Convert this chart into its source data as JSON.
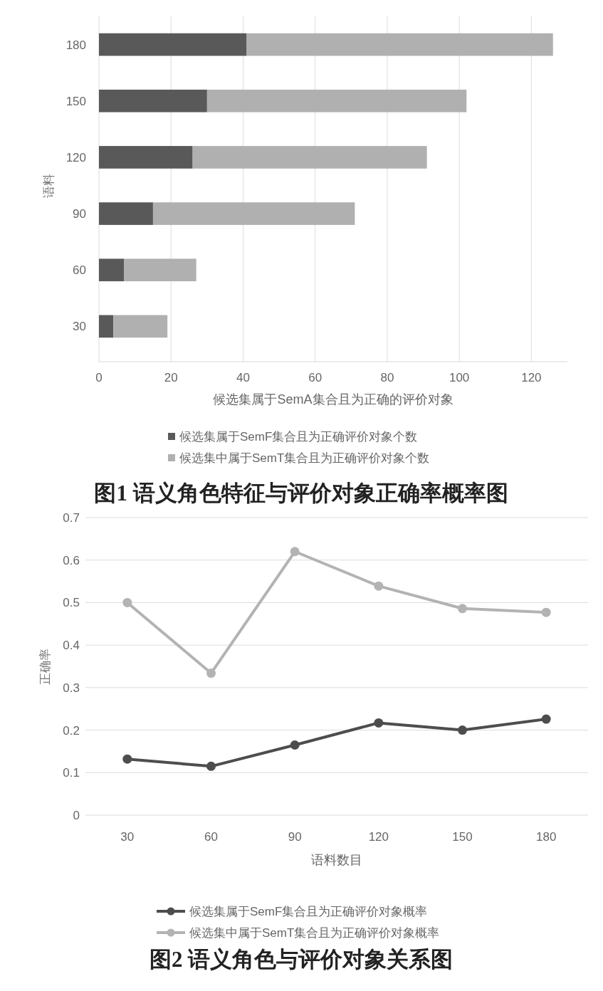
{
  "chart_data": [
    {
      "type": "bar",
      "orientation": "horizontal",
      "stacked": true,
      "title": "图1   语义角色特征与评价对象正确率概率图",
      "xlabel": "候选集属于SemA集合且为正确的评价对象",
      "ylabel": "语料",
      "categories": [
        "180",
        "150",
        "120",
        "90",
        "60",
        "30"
      ],
      "series": [
        {
          "name": "候选集属于SemF集合且为正确评价对象个数",
          "color": "#595959",
          "values": [
            41,
            30,
            26,
            15,
            7,
            4
          ]
        },
        {
          "name": "候选集中属于SemT集合且为正确评价对象个数",
          "color": "#b0b0b0",
          "values": [
            85,
            72,
            65,
            56,
            20,
            15
          ]
        }
      ],
      "xlim": [
        0,
        130
      ],
      "xticks": [
        0,
        20,
        40,
        60,
        80,
        100,
        120
      ],
      "grid": "x",
      "legend": "bottom"
    },
    {
      "type": "line",
      "title": "图2   语义角色与评价对象关系图",
      "xlabel": "语料数目",
      "ylabel": "正确率",
      "categories": [
        "30",
        "60",
        "90",
        "120",
        "150",
        "180"
      ],
      "series": [
        {
          "name": "候选集属于SemF集合且为正确评价对象概率",
          "color": "#4d4d4d",
          "values": [
            0.132,
            0.115,
            0.165,
            0.217,
            0.2,
            0.226
          ]
        },
        {
          "name": "候选集中属于SemT集合且为正确评价对象概率",
          "color": "#b3b3b3",
          "values": [
            0.5,
            0.334,
            0.62,
            0.539,
            0.486,
            0.477
          ]
        }
      ],
      "ylim": [
        0,
        0.7
      ],
      "yticks": [
        0,
        0.1,
        0.2,
        0.3,
        0.4,
        0.5,
        0.6,
        0.7
      ],
      "grid": "y",
      "legend": "bottom",
      "marker": "circle",
      "line_style": "solid"
    }
  ]
}
